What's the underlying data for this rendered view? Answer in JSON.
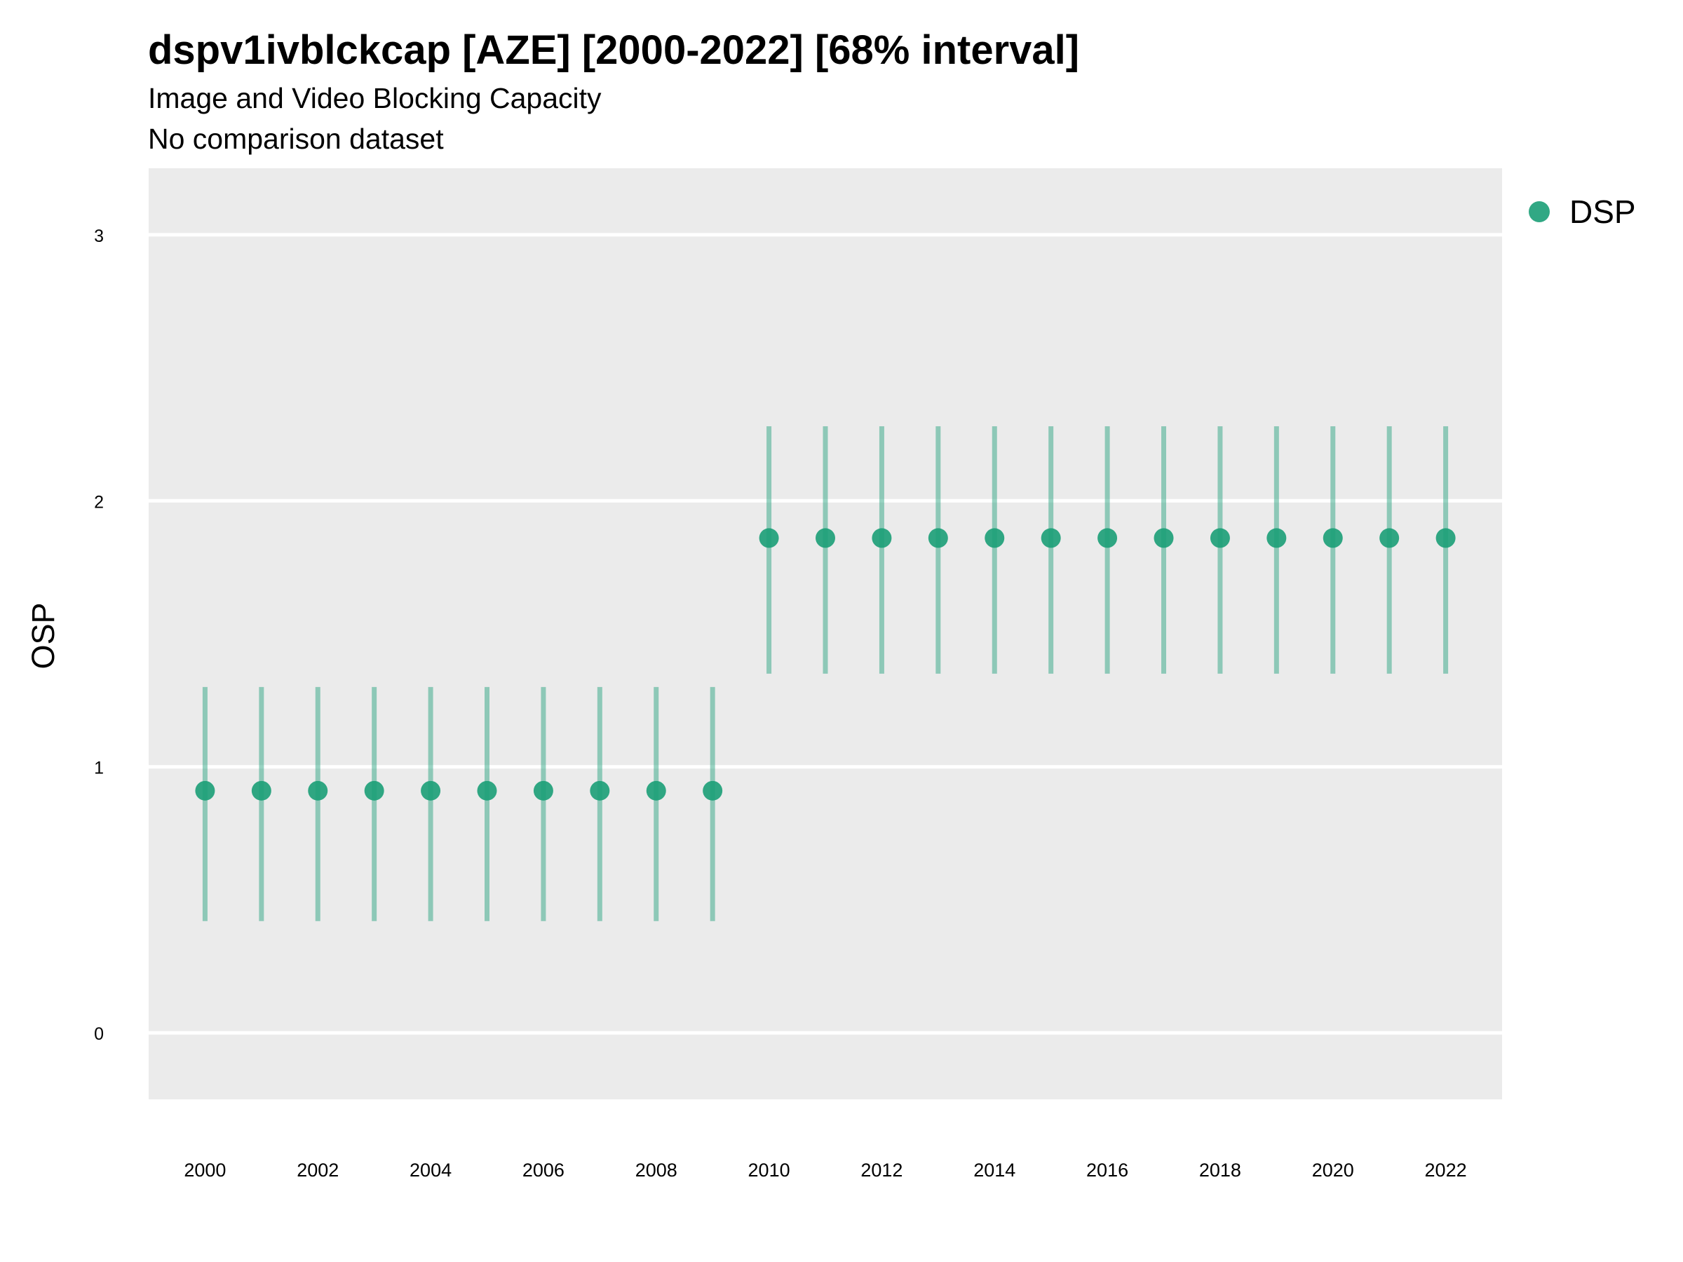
{
  "chart_data": {
    "type": "scatter",
    "title": "dspv1ivblckcap [AZE] [2000-2022] [68% interval]",
    "subtitle": "Image and Video Blocking Capacity",
    "subtitle2": "No comparison dataset",
    "xlabel": "",
    "ylabel": "OSP",
    "xlim": [
      1999,
      2023
    ],
    "ylim": [
      -0.25,
      3.25
    ],
    "x_ticks": [
      2000,
      2002,
      2004,
      2006,
      2008,
      2010,
      2012,
      2014,
      2016,
      2018,
      2020,
      2022
    ],
    "y_ticks": [
      0,
      1,
      2,
      3
    ],
    "grid": true,
    "legend_position": "right",
    "series": [
      {
        "name": "DSP",
        "color": "#1b9e77",
        "x": [
          2000,
          2001,
          2002,
          2003,
          2004,
          2005,
          2006,
          2007,
          2008,
          2009,
          2010,
          2011,
          2012,
          2013,
          2014,
          2015,
          2016,
          2017,
          2018,
          2019,
          2020,
          2021,
          2022
        ],
        "y": [
          0.91,
          0.91,
          0.91,
          0.91,
          0.91,
          0.91,
          0.91,
          0.91,
          0.91,
          0.91,
          1.86,
          1.86,
          1.86,
          1.86,
          1.86,
          1.86,
          1.86,
          1.86,
          1.86,
          1.86,
          1.86,
          1.86,
          1.86
        ],
        "lower": [
          0.42,
          0.42,
          0.42,
          0.42,
          0.42,
          0.42,
          0.42,
          0.42,
          0.42,
          0.42,
          1.35,
          1.35,
          1.35,
          1.35,
          1.35,
          1.35,
          1.35,
          1.35,
          1.35,
          1.35,
          1.35,
          1.35,
          1.35
        ],
        "upper": [
          1.3,
          1.3,
          1.3,
          1.3,
          1.3,
          1.3,
          1.3,
          1.3,
          1.3,
          1.3,
          2.28,
          2.28,
          2.28,
          2.28,
          2.28,
          2.28,
          2.28,
          2.28,
          2.28,
          2.28,
          2.28,
          2.28,
          2.28
        ]
      }
    ]
  }
}
